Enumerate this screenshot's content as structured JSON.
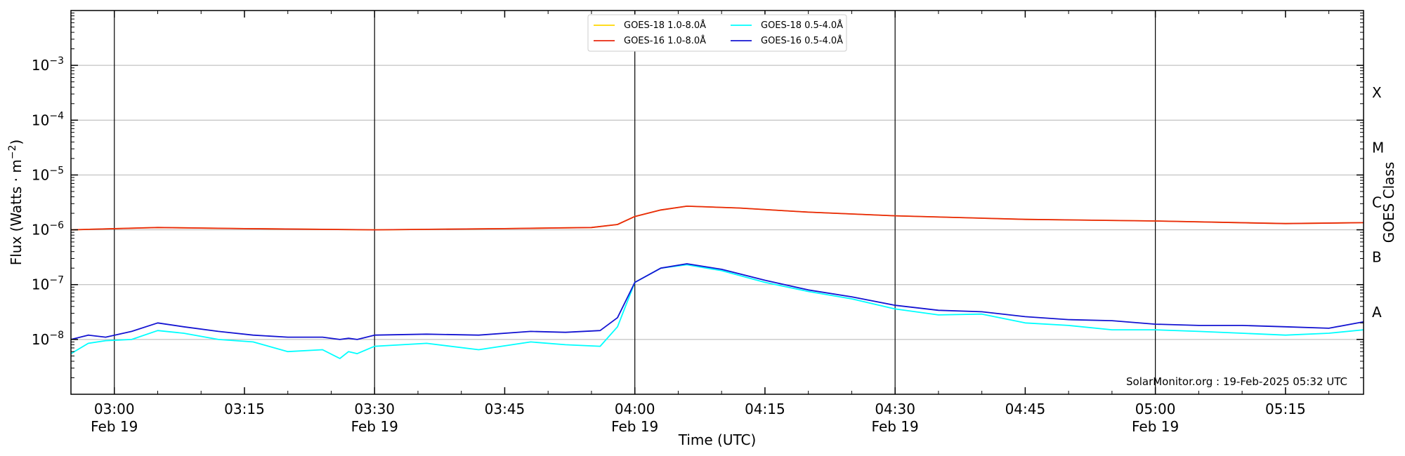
{
  "chart_data": {
    "type": "line",
    "xlabel": "Time (UTC)",
    "ylabel": "Flux (Watts · m",
    "ylabel_sup": "−2",
    "ylabel_close": ")",
    "right_axis_label": "GOES Class",
    "y_scale": "log",
    "ylim": [
      1e-09,
      0.01
    ],
    "xlim": [
      "02:55",
      "05:24"
    ],
    "grid": "horizontal at decades",
    "legend_position": "top-center",
    "credit": "SolarMonitor.org : 19-Feb-2025 05:32 UTC",
    "y_ticks": [
      {
        "value": 1e-08,
        "base": "10",
        "exp": "−8"
      },
      {
        "value": 1e-07,
        "base": "10",
        "exp": "−7"
      },
      {
        "value": 1e-06,
        "base": "10",
        "exp": "−6"
      },
      {
        "value": 1e-05,
        "base": "10",
        "exp": "−5"
      },
      {
        "value": 0.0001,
        "base": "10",
        "exp": "−4"
      },
      {
        "value": 0.001,
        "base": "10",
        "exp": "−3"
      }
    ],
    "x_ticks": [
      {
        "time": "03:00",
        "date": "Feb 19",
        "major": true
      },
      {
        "time": "03:15",
        "date": "",
        "major": false
      },
      {
        "time": "03:30",
        "date": "Feb 19",
        "major": true
      },
      {
        "time": "03:45",
        "date": "",
        "major": false
      },
      {
        "time": "04:00",
        "date": "Feb 19",
        "major": true
      },
      {
        "time": "04:15",
        "date": "",
        "major": false
      },
      {
        "time": "04:30",
        "date": "Feb 19",
        "major": true
      },
      {
        "time": "04:45",
        "date": "",
        "major": false
      },
      {
        "time": "05:00",
        "date": "Feb 19",
        "major": true
      },
      {
        "time": "05:15",
        "date": "",
        "major": false
      }
    ],
    "goes_classes": [
      {
        "label": "A",
        "value": 3.16e-08
      },
      {
        "label": "B",
        "value": 3.16e-07
      },
      {
        "label": "C",
        "value": 3.16e-06
      },
      {
        "label": "M",
        "value": 3.16e-05
      },
      {
        "label": "X",
        "value": 0.000316
      }
    ],
    "series": [
      {
        "name": "GOES-18 1.0-8.0Å",
        "color": "#ffd700",
        "x": [
          "02:55",
          "03:05",
          "03:15",
          "03:30",
          "03:45",
          "03:55",
          "03:58",
          "04:00",
          "04:03",
          "04:06",
          "04:12",
          "04:20",
          "04:30",
          "04:45",
          "05:00",
          "05:15",
          "05:24"
        ],
        "y": [
          1e-06,
          1.1e-06,
          1.05e-06,
          1e-06,
          1.05e-06,
          1.1e-06,
          1.25e-06,
          1.75e-06,
          2.3e-06,
          2.7e-06,
          2.5e-06,
          2.1e-06,
          1.8e-06,
          1.55e-06,
          1.45e-06,
          1.3e-06,
          1.35e-06
        ]
      },
      {
        "name": "GOES-16 1.0-8.0Å",
        "color": "#e8280f",
        "x": [
          "02:55",
          "03:05",
          "03:15",
          "03:30",
          "03:45",
          "03:55",
          "03:58",
          "04:00",
          "04:03",
          "04:06",
          "04:12",
          "04:20",
          "04:30",
          "04:45",
          "05:00",
          "05:15",
          "05:24"
        ],
        "y": [
          1e-06,
          1.1e-06,
          1.05e-06,
          1e-06,
          1.05e-06,
          1.1e-06,
          1.25e-06,
          1.75e-06,
          2.3e-06,
          2.7e-06,
          2.5e-06,
          2.1e-06,
          1.8e-06,
          1.55e-06,
          1.45e-06,
          1.3e-06,
          1.35e-06
        ]
      },
      {
        "name": "GOES-18 0.5-4.0Å",
        "color": "#00ffff",
        "x": [
          "02:55",
          "02:57",
          "02:59",
          "03:02",
          "03:05",
          "03:08",
          "03:12",
          "03:16",
          "03:20",
          "03:24",
          "03:26",
          "03:27",
          "03:28",
          "03:30",
          "03:36",
          "03:42",
          "03:48",
          "03:52",
          "03:56",
          "03:58",
          "04:00",
          "04:03",
          "04:06",
          "04:10",
          "04:15",
          "04:20",
          "04:25",
          "04:30",
          "04:35",
          "04:40",
          "04:45",
          "04:50",
          "04:55",
          "05:00",
          "05:05",
          "05:10",
          "05:15",
          "05:20",
          "05:24"
        ],
        "y": [
          5.5e-09,
          8.5e-09,
          9.5e-09,
          1e-08,
          1.45e-08,
          1.3e-08,
          1e-08,
          9e-09,
          6e-09,
          6.5e-09,
          4.5e-09,
          6e-09,
          5.5e-09,
          7.5e-09,
          8.5e-09,
          6.5e-09,
          9e-09,
          8e-09,
          7.5e-09,
          1.7e-08,
          1.1e-07,
          2e-07,
          2.3e-07,
          1.8e-07,
          1.1e-07,
          7.5e-08,
          5.5e-08,
          3.6e-08,
          2.8e-08,
          2.9e-08,
          2e-08,
          1.8e-08,
          1.5e-08,
          1.5e-08,
          1.4e-08,
          1.3e-08,
          1.2e-08,
          1.3e-08,
          1.5e-08
        ]
      },
      {
        "name": "GOES-16 0.5-4.0Å",
        "color": "#1414d2",
        "x": [
          "02:55",
          "02:57",
          "02:59",
          "03:02",
          "03:05",
          "03:08",
          "03:12",
          "03:16",
          "03:20",
          "03:24",
          "03:26",
          "03:27",
          "03:28",
          "03:30",
          "03:36",
          "03:42",
          "03:48",
          "03:52",
          "03:56",
          "03:58",
          "04:00",
          "04:03",
          "04:06",
          "04:10",
          "04:15",
          "04:20",
          "04:25",
          "04:30",
          "04:35",
          "04:40",
          "04:45",
          "04:50",
          "04:55",
          "05:00",
          "05:05",
          "05:10",
          "05:15",
          "05:20",
          "05:24"
        ],
        "y": [
          1e-08,
          1.2e-08,
          1.1e-08,
          1.4e-08,
          2e-08,
          1.7e-08,
          1.4e-08,
          1.2e-08,
          1.1e-08,
          1.1e-08,
          1e-08,
          1.05e-08,
          1e-08,
          1.2e-08,
          1.25e-08,
          1.2e-08,
          1.4e-08,
          1.35e-08,
          1.45e-08,
          2.5e-08,
          1.1e-07,
          2e-07,
          2.4e-07,
          1.9e-07,
          1.2e-07,
          8e-08,
          6e-08,
          4.2e-08,
          3.4e-08,
          3.2e-08,
          2.6e-08,
          2.3e-08,
          2.2e-08,
          1.9e-08,
          1.8e-08,
          1.8e-08,
          1.7e-08,
          1.6e-08,
          2.1e-08
        ]
      }
    ]
  }
}
